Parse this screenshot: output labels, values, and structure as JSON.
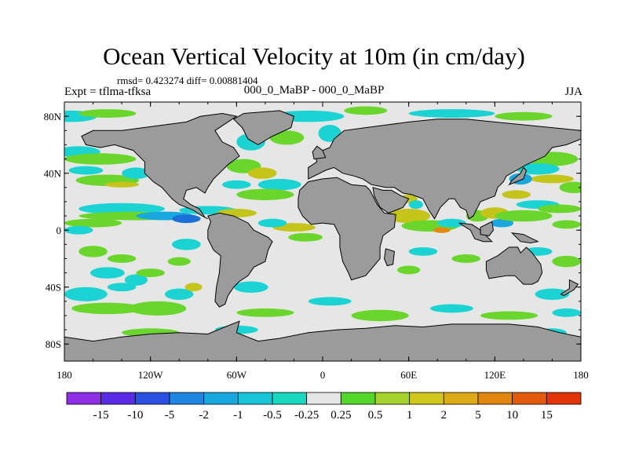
{
  "header": {
    "title": "Ocean Vertical Velocity at 10m (in cm/day)",
    "stats": "rmsd= 0.423274 diff= 0.00881404",
    "expt": "Expt = tflma-tfksa",
    "subtitle": "000_0_MaBP - 000_0_MaBP",
    "season": "JJA"
  },
  "map": {
    "lat_ticks": [
      {
        "lat": 80,
        "label": "80N"
      },
      {
        "lat": 40,
        "label": "40N"
      },
      {
        "lat": 0,
        "label": "0"
      },
      {
        "lat": -40,
        "label": "40S"
      },
      {
        "lat": -80,
        "label": "80S"
      }
    ],
    "lon_ticks": [
      {
        "lon": -180,
        "label": "180"
      },
      {
        "lon": -120,
        "label": "120W"
      },
      {
        "lon": -60,
        "label": "60W"
      },
      {
        "lon": 0,
        "label": "0"
      },
      {
        "lon": 60,
        "label": "60E"
      },
      {
        "lon": 120,
        "label": "120E"
      },
      {
        "lon": 180,
        "label": "180"
      }
    ],
    "colors": {
      "land": "#9b9b9b",
      "ocean": "#e6e6e6",
      "pos_weak": "#6ad62c",
      "pos_mid": "#c4c41a",
      "pos_strong": "#e28a10",
      "neg_weak": "#1bd3d3",
      "neg_mid": "#19a7df",
      "neg_strong": "#1b6fd6"
    }
  },
  "colorbar": {
    "colors": [
      "#8d2ee6",
      "#5a2be4",
      "#2c4fe0",
      "#1f86e2",
      "#17a8e0",
      "#17c5d6",
      "#1ad8c0",
      "#e6e6e6",
      "#54d62a",
      "#a6d22b",
      "#d1c81d",
      "#dcaa14",
      "#e1850f",
      "#e45a0c",
      "#e3330a"
    ],
    "labels": [
      "-15",
      "-10",
      "-5",
      "-2",
      "-1",
      "-0.5",
      "-0.25",
      "0.25",
      "0.5",
      "1",
      "2",
      "5",
      "10",
      "15"
    ]
  }
}
